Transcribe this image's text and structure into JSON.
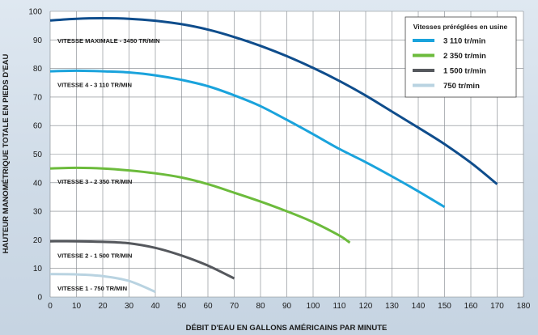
{
  "chart_data": {
    "type": "line",
    "xlabel": "DÉBIT D'EAU EN GALLONS AMÉRICAINS PAR MINUTE",
    "ylabel": "HAUTEUR MANOMÉTRIQUE TOTALE EN PIEDS D'EAU",
    "xlim": [
      0,
      180
    ],
    "ylim": [
      0,
      100
    ],
    "x_ticks": [
      0,
      10,
      20,
      30,
      40,
      50,
      60,
      70,
      80,
      90,
      100,
      110,
      120,
      130,
      140,
      150,
      160,
      170,
      180
    ],
    "y_ticks": [
      0,
      10,
      20,
      30,
      40,
      50,
      60,
      70,
      80,
      90,
      100
    ],
    "grid": true,
    "legend": {
      "title": "Vitesses préréglées en usine",
      "placement": "top-right",
      "entries": [
        {
          "label": "3 110 tr/min",
          "color": "#1aa3dc"
        },
        {
          "label": "2 350 tr/min",
          "color": "#6cbb3c"
        },
        {
          "label": "1 500 tr/min",
          "color": "#55585d"
        },
        {
          "label": "750 tr/min",
          "color": "#b9d3e1"
        }
      ]
    },
    "series": [
      {
        "label": "VITESSE MAXIMALE - 3450 TR/MIN",
        "color": "#0f4d8c",
        "x": [
          0,
          10,
          20,
          30,
          40,
          50,
          60,
          70,
          80,
          90,
          100,
          110,
          120,
          130,
          140,
          150,
          160,
          170
        ],
        "y": [
          96.8,
          97.4,
          97.6,
          97.4,
          96.7,
          95.5,
          93.6,
          91.0,
          87.9,
          84.3,
          80.2,
          75.6,
          70.5,
          64.9,
          59.3,
          53.5,
          47.0,
          39.5
        ]
      },
      {
        "label": "VITESSE 4 - 3 110 TR/MIN",
        "color": "#1aa3dc",
        "x": [
          0,
          10,
          20,
          30,
          40,
          50,
          60,
          70,
          80,
          90,
          100,
          110,
          120,
          130,
          140,
          150
        ],
        "y": [
          79.0,
          79.2,
          79.0,
          78.6,
          77.6,
          76.0,
          73.8,
          70.6,
          66.8,
          62.0,
          57.0,
          51.8,
          47.2,
          42.2,
          37.0,
          31.5
        ]
      },
      {
        "label": "VITESSE 3 - 2 350 TR/MIN",
        "color": "#6cbb3c",
        "x": [
          0,
          10,
          20,
          30,
          40,
          50,
          60,
          70,
          80,
          90,
          100,
          110,
          114
        ],
        "y": [
          45.0,
          45.2,
          45.0,
          44.3,
          43.3,
          41.8,
          39.5,
          36.5,
          33.4,
          30.0,
          26.2,
          21.5,
          19.0
        ]
      },
      {
        "label": "VITESSE 2 - 1 500 TR/MIN",
        "color": "#55585d",
        "x": [
          0,
          10,
          20,
          30,
          40,
          50,
          60,
          70
        ],
        "y": [
          19.5,
          19.5,
          19.3,
          18.8,
          17.2,
          14.5,
          11.0,
          6.5
        ]
      },
      {
        "label": "VITESSE 1 - 750 TR/MIN",
        "color": "#b9d3e1",
        "x": [
          0,
          10,
          20,
          30,
          40
        ],
        "y": [
          8.0,
          7.9,
          7.3,
          5.6,
          1.8
        ]
      }
    ]
  }
}
